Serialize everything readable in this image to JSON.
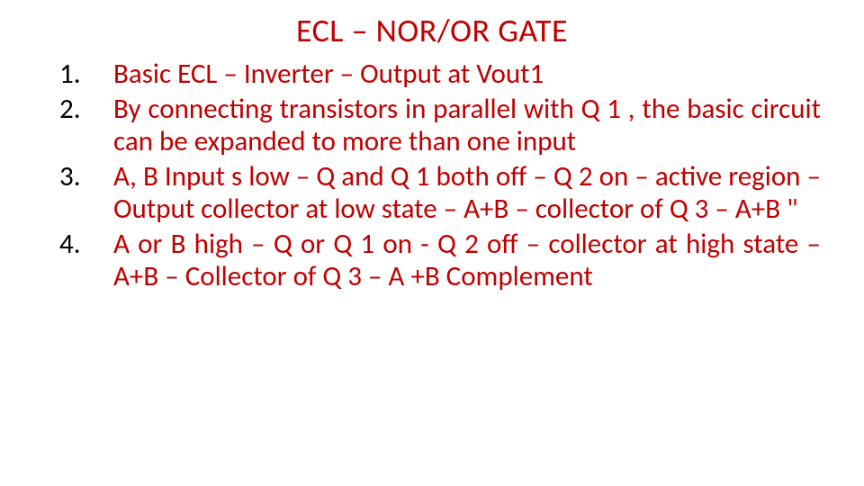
{
  "title": {
    "text": "ECL – NOR/OR GATE",
    "color": "#c00000",
    "fontsize": 36
  },
  "list": {
    "item_color": "#c00000",
    "number_color": "#000000",
    "fontsize": 31,
    "items": [
      "Basic ECL – Inverter – Output at Vout1",
      "By connecting transistors in parallel with Q 1 , the basic circuit can be expanded to more than one input",
      "A, B Input s low – Q and Q 1 both off – Q 2 on – active region – Output collector at low state – A+B – collector of Q 3 – A+B \"",
      "A or B high  – Q or Q 1 on -  Q 2 off – collector at high state – A+B – Collector of Q 3 – A +B Complement"
    ]
  },
  "background_color": "#ffffff"
}
